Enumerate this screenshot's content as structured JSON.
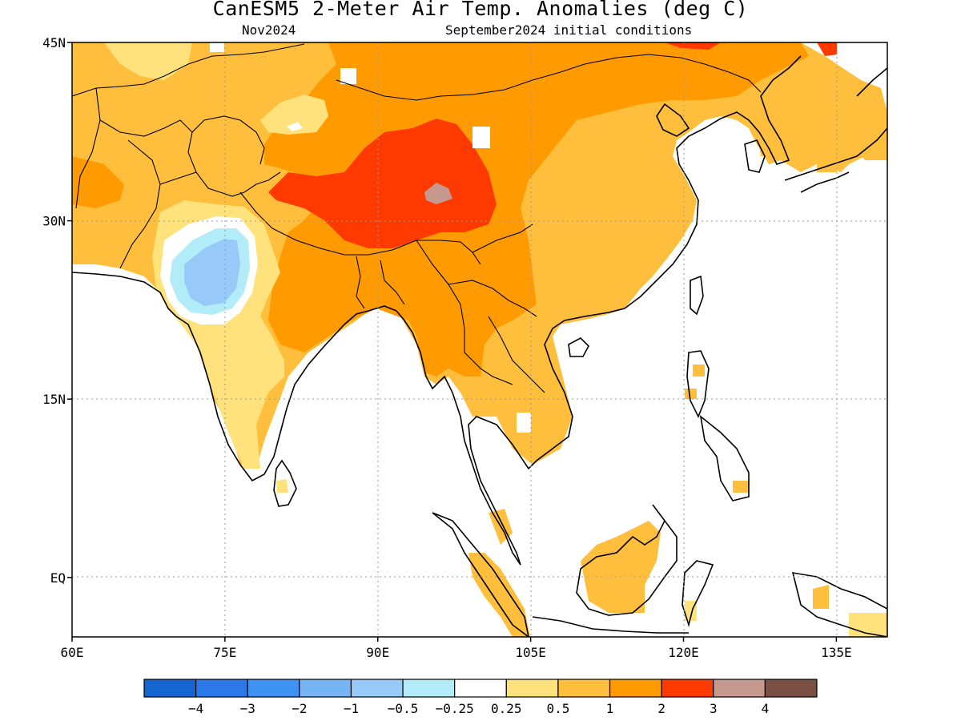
{
  "title": "CanESM5 2-Meter Air Temp. Anomalies (deg C)",
  "subtitle_left": "Nov2024",
  "subtitle_right": "September2024 initial conditions",
  "map": {
    "lon_range": [
      60,
      140
    ],
    "lat_range": [
      -5,
      45
    ],
    "lat_ticks": [
      {
        "label": "45N",
        "lat": 45
      },
      {
        "label": "30N",
        "lat": 30
      },
      {
        "label": "15N",
        "lat": 15
      },
      {
        "label": "EQ",
        "lat": 0
      }
    ],
    "lon_ticks": [
      {
        "label": "60E",
        "lon": 60
      },
      {
        "label": "75E",
        "lon": 75
      },
      {
        "label": "90E",
        "lon": 90
      },
      {
        "label": "105E",
        "lon": 105
      },
      {
        "label": "120E",
        "lon": 120
      },
      {
        "label": "135E",
        "lon": 135
      }
    ],
    "gridlines": "dotted"
  },
  "colorbar": {
    "colors": [
      "#1565d0",
      "#2a78ea",
      "#3f91f2",
      "#76b4f6",
      "#97caf8",
      "#b1ecf8",
      "#ffffff",
      "#ffe27c",
      "#ffbe3c",
      "#ff9a00",
      "#ff3a00",
      "#c6998e",
      "#7a4f44"
    ],
    "labels": [
      "−4",
      "−3",
      "−2",
      "−1",
      "−0.5",
      "−0.25",
      "0.25",
      "0.5",
      "1",
      "2",
      "3",
      "4"
    ]
  }
}
